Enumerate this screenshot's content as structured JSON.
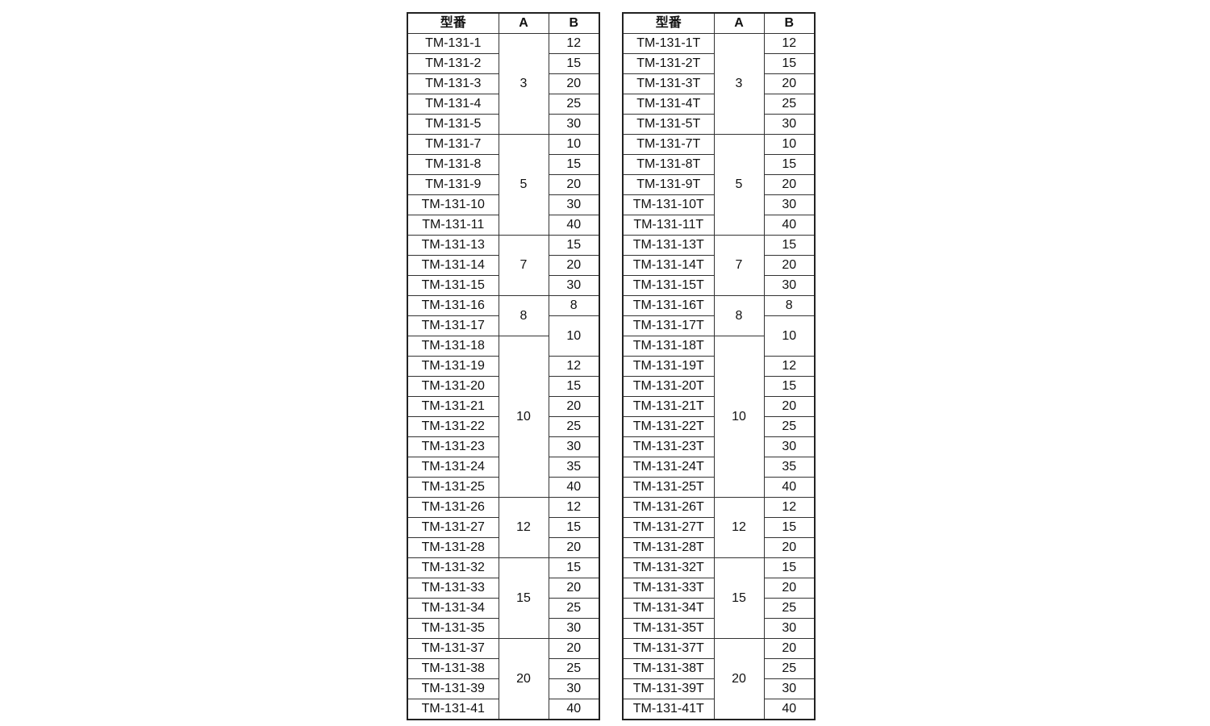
{
  "tables": [
    {
      "headers": [
        "型番",
        "A",
        "B"
      ],
      "groups": [
        {
          "a": "3",
          "rows": [
            {
              "model": "TM-131-1",
              "b": "12"
            },
            {
              "model": "TM-131-2",
              "b": "15"
            },
            {
              "model": "TM-131-3",
              "b": "20"
            },
            {
              "model": "TM-131-4",
              "b": "25"
            },
            {
              "model": "TM-131-5",
              "b": "30"
            }
          ]
        },
        {
          "a": "5",
          "rows": [
            {
              "model": "TM-131-7",
              "b": "10"
            },
            {
              "model": "TM-131-8",
              "b": "15"
            },
            {
              "model": "TM-131-9",
              "b": "20"
            },
            {
              "model": "TM-131-10",
              "b": "30"
            },
            {
              "model": "TM-131-11",
              "b": "40"
            }
          ]
        },
        {
          "a": "7",
          "rows": [
            {
              "model": "TM-131-13",
              "b": "15"
            },
            {
              "model": "TM-131-14",
              "b": "20"
            },
            {
              "model": "TM-131-15",
              "b": "30"
            }
          ]
        },
        {
          "a": "8",
          "rows": [
            {
              "model": "TM-131-16",
              "b": "8"
            },
            {
              "model": "TM-131-17",
              "b": "10",
              "b_rows": 2
            }
          ]
        },
        {
          "a": "10",
          "rows": [
            {
              "model": "TM-131-18"
            },
            {
              "model": "TM-131-19",
              "b": "12"
            },
            {
              "model": "TM-131-20",
              "b": "15"
            },
            {
              "model": "TM-131-21",
              "b": "20"
            },
            {
              "model": "TM-131-22",
              "b": "25"
            },
            {
              "model": "TM-131-23",
              "b": "30"
            },
            {
              "model": "TM-131-24",
              "b": "35"
            },
            {
              "model": "TM-131-25",
              "b": "40"
            }
          ]
        },
        {
          "a": "12",
          "rows": [
            {
              "model": "TM-131-26",
              "b": "12"
            },
            {
              "model": "TM-131-27",
              "b": "15"
            },
            {
              "model": "TM-131-28",
              "b": "20"
            }
          ]
        },
        {
          "a": "15",
          "rows": [
            {
              "model": "TM-131-32",
              "b": "15"
            },
            {
              "model": "TM-131-33",
              "b": "20"
            },
            {
              "model": "TM-131-34",
              "b": "25"
            },
            {
              "model": "TM-131-35",
              "b": "30"
            }
          ]
        },
        {
          "a": "20",
          "rows": [
            {
              "model": "TM-131-37",
              "b": "20"
            },
            {
              "model": "TM-131-38",
              "b": "25"
            },
            {
              "model": "TM-131-39",
              "b": "30"
            },
            {
              "model": "TM-131-41",
              "b": "40"
            }
          ]
        }
      ]
    },
    {
      "headers": [
        "型番",
        "A",
        "B"
      ],
      "groups": [
        {
          "a": "3",
          "rows": [
            {
              "model": "TM-131-1T",
              "b": "12"
            },
            {
              "model": "TM-131-2T",
              "b": "15"
            },
            {
              "model": "TM-131-3T",
              "b": "20"
            },
            {
              "model": "TM-131-4T",
              "b": "25"
            },
            {
              "model": "TM-131-5T",
              "b": "30"
            }
          ]
        },
        {
          "a": "5",
          "rows": [
            {
              "model": "TM-131-7T",
              "b": "10"
            },
            {
              "model": "TM-131-8T",
              "b": "15"
            },
            {
              "model": "TM-131-9T",
              "b": "20"
            },
            {
              "model": "TM-131-10T",
              "b": "30"
            },
            {
              "model": "TM-131-11T",
              "b": "40"
            }
          ]
        },
        {
          "a": "7",
          "rows": [
            {
              "model": "TM-131-13T",
              "b": "15"
            },
            {
              "model": "TM-131-14T",
              "b": "20"
            },
            {
              "model": "TM-131-15T",
              "b": "30"
            }
          ]
        },
        {
          "a": "8",
          "rows": [
            {
              "model": "TM-131-16T",
              "b": "8"
            },
            {
              "model": "TM-131-17T",
              "b": "10",
              "b_rows": 2
            }
          ]
        },
        {
          "a": "10",
          "rows": [
            {
              "model": "TM-131-18T"
            },
            {
              "model": "TM-131-19T",
              "b": "12"
            },
            {
              "model": "TM-131-20T",
              "b": "15"
            },
            {
              "model": "TM-131-21T",
              "b": "20"
            },
            {
              "model": "TM-131-22T",
              "b": "25"
            },
            {
              "model": "TM-131-23T",
              "b": "30"
            },
            {
              "model": "TM-131-24T",
              "b": "35"
            },
            {
              "model": "TM-131-25T",
              "b": "40"
            }
          ]
        },
        {
          "a": "12",
          "rows": [
            {
              "model": "TM-131-26T",
              "b": "12"
            },
            {
              "model": "TM-131-27T",
              "b": "15"
            },
            {
              "model": "TM-131-28T",
              "b": "20"
            }
          ]
        },
        {
          "a": "15",
          "rows": [
            {
              "model": "TM-131-32T",
              "b": "15"
            },
            {
              "model": "TM-131-33T",
              "b": "20"
            },
            {
              "model": "TM-131-34T",
              "b": "25"
            },
            {
              "model": "TM-131-35T",
              "b": "30"
            }
          ]
        },
        {
          "a": "20",
          "rows": [
            {
              "model": "TM-131-37T",
              "b": "20"
            },
            {
              "model": "TM-131-38T",
              "b": "25"
            },
            {
              "model": "TM-131-39T",
              "b": "30"
            },
            {
              "model": "TM-131-41T",
              "b": "40"
            }
          ]
        }
      ]
    }
  ]
}
